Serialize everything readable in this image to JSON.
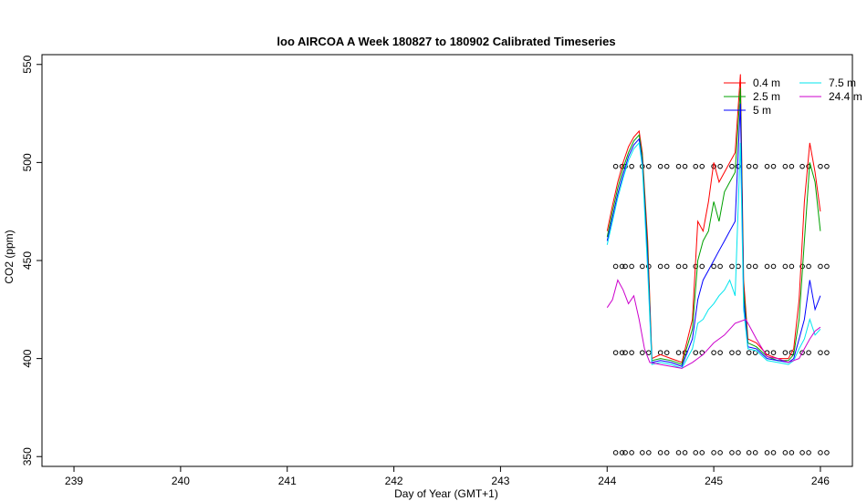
{
  "chart_data": {
    "type": "line",
    "title": "loo AIRCOA A  Week 180827 to 180902  Calibrated Timeseries",
    "xlabel": "Day of Year (GMT+1)",
    "ylabel": "CO2 (ppm)",
    "xlim": [
      238.7,
      246.3
    ],
    "ylim": [
      345,
      555
    ],
    "xticks": [
      239,
      240,
      241,
      242,
      243,
      244,
      245,
      246
    ],
    "yticks": [
      350,
      400,
      450,
      500,
      550
    ],
    "grid": false,
    "legend_position": "top-right",
    "series": [
      {
        "name": "0.4 m",
        "color": "#ff0000",
        "x": [
          244.0,
          244.05,
          244.1,
          244.15,
          244.2,
          244.25,
          244.3,
          244.33,
          244.38,
          244.42,
          244.5,
          244.6,
          244.7,
          244.8,
          244.85,
          244.9,
          244.95,
          245.0,
          245.05,
          245.1,
          245.15,
          245.2,
          245.25,
          245.28,
          245.32,
          245.4,
          245.5,
          245.6,
          245.7,
          245.75,
          245.8,
          245.85,
          245.9,
          245.95,
          246.0
        ],
        "y": [
          465,
          478,
          490,
          500,
          508,
          513,
          516,
          505,
          460,
          400,
          402,
          400,
          398,
          420,
          470,
          465,
          480,
          500,
          490,
          495,
          500,
          505,
          545,
          440,
          410,
          408,
          402,
          400,
          400,
          405,
          430,
          480,
          510,
          495,
          475
        ]
      },
      {
        "name": "2.5 m",
        "color": "#00a000",
        "x": [
          244.0,
          244.05,
          244.1,
          244.15,
          244.2,
          244.25,
          244.3,
          244.33,
          244.38,
          244.42,
          244.5,
          244.6,
          244.7,
          244.8,
          244.85,
          244.9,
          244.95,
          245.0,
          245.05,
          245.1,
          245.15,
          245.2,
          245.25,
          245.28,
          245.32,
          245.4,
          245.5,
          245.6,
          245.7,
          245.75,
          245.8,
          245.85,
          245.9,
          245.95,
          246.0
        ],
        "y": [
          462,
          475,
          487,
          497,
          505,
          511,
          514,
          503,
          455,
          399,
          400,
          399,
          397,
          415,
          450,
          460,
          465,
          480,
          470,
          485,
          490,
          495,
          538,
          435,
          408,
          406,
          401,
          399,
          399,
          402,
          420,
          460,
          500,
          490,
          465
        ]
      },
      {
        "name": "5 m",
        "color": "#0000ff",
        "x": [
          244.0,
          244.05,
          244.1,
          244.15,
          244.2,
          244.25,
          244.3,
          244.33,
          244.38,
          244.42,
          244.5,
          244.6,
          244.7,
          244.8,
          244.85,
          244.9,
          244.95,
          245.0,
          245.05,
          245.1,
          245.15,
          245.2,
          245.25,
          245.28,
          245.32,
          245.4,
          245.5,
          245.6,
          245.7,
          245.75,
          245.8,
          245.85,
          245.9,
          245.95,
          246.0
        ],
        "y": [
          460,
          472,
          484,
          494,
          503,
          509,
          512,
          500,
          450,
          398,
          399,
          398,
          396,
          410,
          430,
          440,
          445,
          450,
          455,
          460,
          465,
          470,
          530,
          430,
          406,
          405,
          400,
          399,
          398,
          400,
          410,
          420,
          440,
          425,
          432
        ]
      },
      {
        "name": "7.5 m",
        "color": "#00e5ee",
        "x": [
          244.0,
          244.05,
          244.1,
          244.15,
          244.2,
          244.25,
          244.3,
          244.33,
          244.38,
          244.42,
          244.5,
          244.6,
          244.7,
          244.8,
          244.85,
          244.9,
          244.95,
          245.0,
          245.05,
          245.1,
          245.15,
          245.2,
          245.25,
          245.28,
          245.32,
          245.4,
          245.5,
          245.6,
          245.7,
          245.75,
          245.8,
          245.85,
          245.9,
          245.95,
          246.0
        ],
        "y": [
          458,
          470,
          482,
          492,
          501,
          507,
          510,
          498,
          445,
          397,
          398,
          397,
          395,
          405,
          418,
          420,
          425,
          428,
          432,
          435,
          440,
          432,
          510,
          425,
          405,
          404,
          399,
          398,
          397,
          399,
          405,
          410,
          420,
          412,
          415
        ]
      },
      {
        "name": "24.4 m",
        "color": "#cc00cc",
        "x": [
          244.0,
          244.05,
          244.1,
          244.15,
          244.2,
          244.25,
          244.3,
          244.35,
          244.4,
          244.5,
          244.6,
          244.7,
          244.8,
          244.9,
          245.0,
          245.1,
          245.2,
          245.3,
          245.35,
          245.4,
          245.5,
          245.6,
          245.7,
          245.8,
          245.85,
          245.9,
          245.95,
          246.0
        ],
        "y": [
          426,
          430,
          440,
          435,
          428,
          432,
          420,
          405,
          398,
          397,
          396,
          395,
          398,
          402,
          408,
          412,
          418,
          420,
          415,
          410,
          401,
          400,
          398,
          400,
          405,
          410,
          414,
          416
        ]
      }
    ],
    "markers": {
      "symbol": "open-circle",
      "color": "#000000",
      "levels": [
        352,
        403,
        447,
        498
      ],
      "x": [
        244.08,
        244.17,
        244.33,
        244.5,
        244.67,
        244.83,
        245.0,
        245.17,
        245.33,
        245.5,
        245.67,
        245.83,
        246.0
      ]
    }
  }
}
